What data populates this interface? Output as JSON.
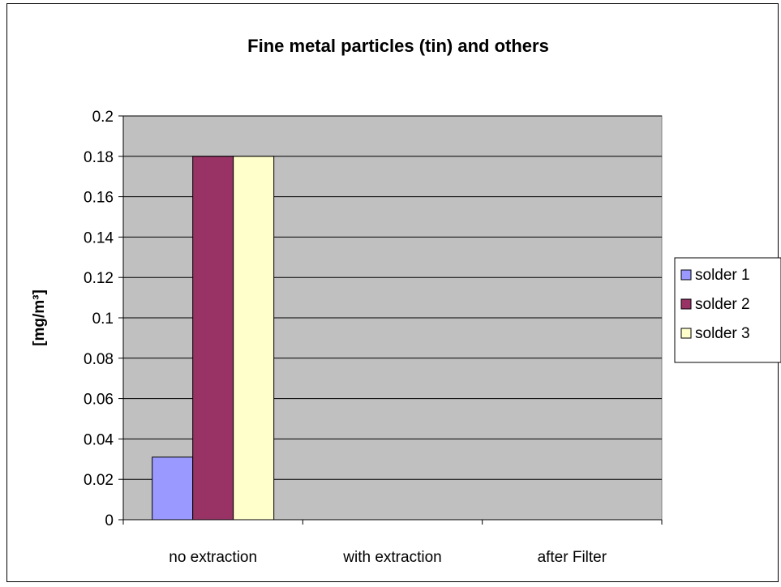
{
  "chart_data": {
    "type": "bar",
    "title": "Fine metal particles (tin) and others",
    "xlabel": "",
    "ylabel": "[mg/m³]",
    "categories": [
      "no extraction",
      "with extraction",
      "after Filter"
    ],
    "series": [
      {
        "name": "solder 1",
        "color": "#9999ff",
        "values": [
          0.031,
          null,
          null
        ]
      },
      {
        "name": "solder 2",
        "color": "#993366",
        "values": [
          0.18,
          null,
          null
        ]
      },
      {
        "name": "solder 3",
        "color": "#ffffcc",
        "values": [
          0.18,
          null,
          null
        ]
      }
    ],
    "ylim": [
      0,
      0.2
    ],
    "yticks": [
      0,
      0.02,
      0.04,
      0.06,
      0.08,
      0.1,
      0.12,
      0.14,
      0.16,
      0.18,
      0.2
    ],
    "ytick_labels": [
      "0",
      "0.02",
      "0.04",
      "0.06",
      "0.08",
      "0.1",
      "0.12",
      "0.14",
      "0.16",
      "0.18",
      "0.2"
    ],
    "grid": true,
    "plot_background": "#c0c0c0",
    "legend_position": "right"
  }
}
